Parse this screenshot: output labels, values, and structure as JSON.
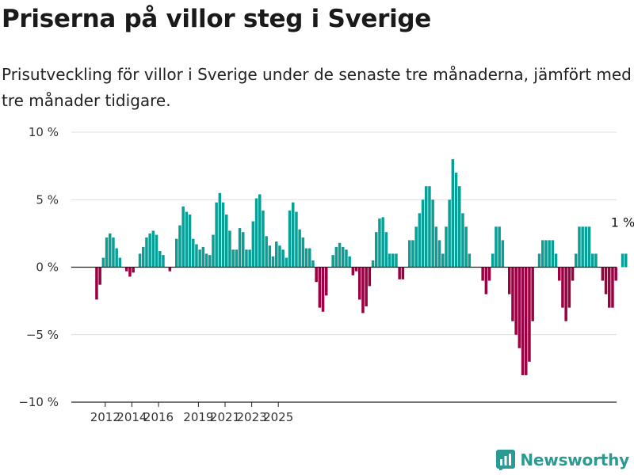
{
  "title": "Priserna på villor steg i Sverige",
  "subtitle": "Prisutveckling för villor i Sverige under de senaste tre månaderna, jämfört med tre månader tidigare.",
  "brand": {
    "name": "Newsworthy",
    "icon": "newsworthy-logo-icon",
    "color": "#2a9a93"
  },
  "chart_data": {
    "type": "bar",
    "title": "Priserna på villor steg i Sverige",
    "xlabel": "",
    "ylabel": "",
    "unit": "%",
    "ylim": [
      -10,
      10
    ],
    "yticks": [
      {
        "value": 10,
        "label": "10 %"
      },
      {
        "value": 5,
        "label": "5 %"
      },
      {
        "value": 0,
        "label": "0 %"
      },
      {
        "value": -5,
        "label": "−5 %"
      },
      {
        "value": -10,
        "label": "−10 %"
      }
    ],
    "xticks": [
      {
        "year": 2012,
        "label": "2012"
      },
      {
        "year": 2014,
        "label": "2014"
      },
      {
        "year": 2016,
        "label": "2016"
      },
      {
        "year": 2019,
        "label": "2019"
      },
      {
        "year": 2021,
        "label": "2021"
      },
      {
        "year": 2023,
        "label": "2023"
      },
      {
        "year": 2025,
        "label": "2025"
      }
    ],
    "x_start_year": 2011.25,
    "grid": true,
    "legend": "none",
    "colors": {
      "positive": "#0a9f96",
      "negative": "#9b0042"
    },
    "annotation": {
      "text": "1 %"
    },
    "values": [
      -2.4,
      -1.3,
      0.7,
      2.2,
      2.5,
      2.2,
      1.4,
      0.7,
      0,
      -0.3,
      -0.7,
      -0.4,
      0,
      1,
      1.5,
      2.2,
      2.5,
      2.7,
      2.4,
      1.2,
      0.9,
      0,
      -0.3,
      0,
      2.1,
      3.1,
      4.5,
      4.1,
      3.9,
      2.1,
      1.7,
      1.3,
      1.5,
      1,
      0.9,
      2.4,
      4.8,
      5.5,
      4.8,
      3.9,
      2.7,
      1.3,
      1.3,
      2.9,
      2.6,
      1.3,
      1.3,
      3.4,
      5.1,
      5.4,
      4.2,
      2.3,
      1.6,
      0.8,
      1.9,
      1.6,
      1.3,
      0.7,
      4.2,
      4.8,
      4.1,
      2.8,
      2.2,
      1.4,
      1.4,
      0.5,
      -1.1,
      -3,
      -3.3,
      -2.1,
      0,
      0.9,
      1.5,
      1.8,
      1.5,
      1.3,
      0.8,
      -0.6,
      -0.3,
      -2.4,
      -3.4,
      -2.9,
      -1.4,
      0.5,
      2.6,
      3.6,
      3.7,
      2.6,
      1,
      1,
      1,
      -0.9,
      -0.9,
      0,
      2,
      2,
      3,
      4,
      5,
      6,
      6,
      5,
      3,
      2,
      1,
      3,
      5,
      8,
      7,
      6,
      4,
      3,
      1,
      0,
      0,
      0,
      -1,
      -2,
      -1,
      1,
      3,
      3,
      2,
      0,
      -2,
      -4,
      -5,
      -6,
      -8,
      -8,
      -7,
      -4,
      0,
      1,
      2,
      2,
      2,
      2,
      1,
      -1,
      -3,
      -4,
      -3,
      -1,
      1,
      3,
      3,
      3,
      3,
      1,
      1,
      0,
      -1,
      -2,
      -3,
      -3,
      -1,
      0,
      1,
      1
    ]
  }
}
